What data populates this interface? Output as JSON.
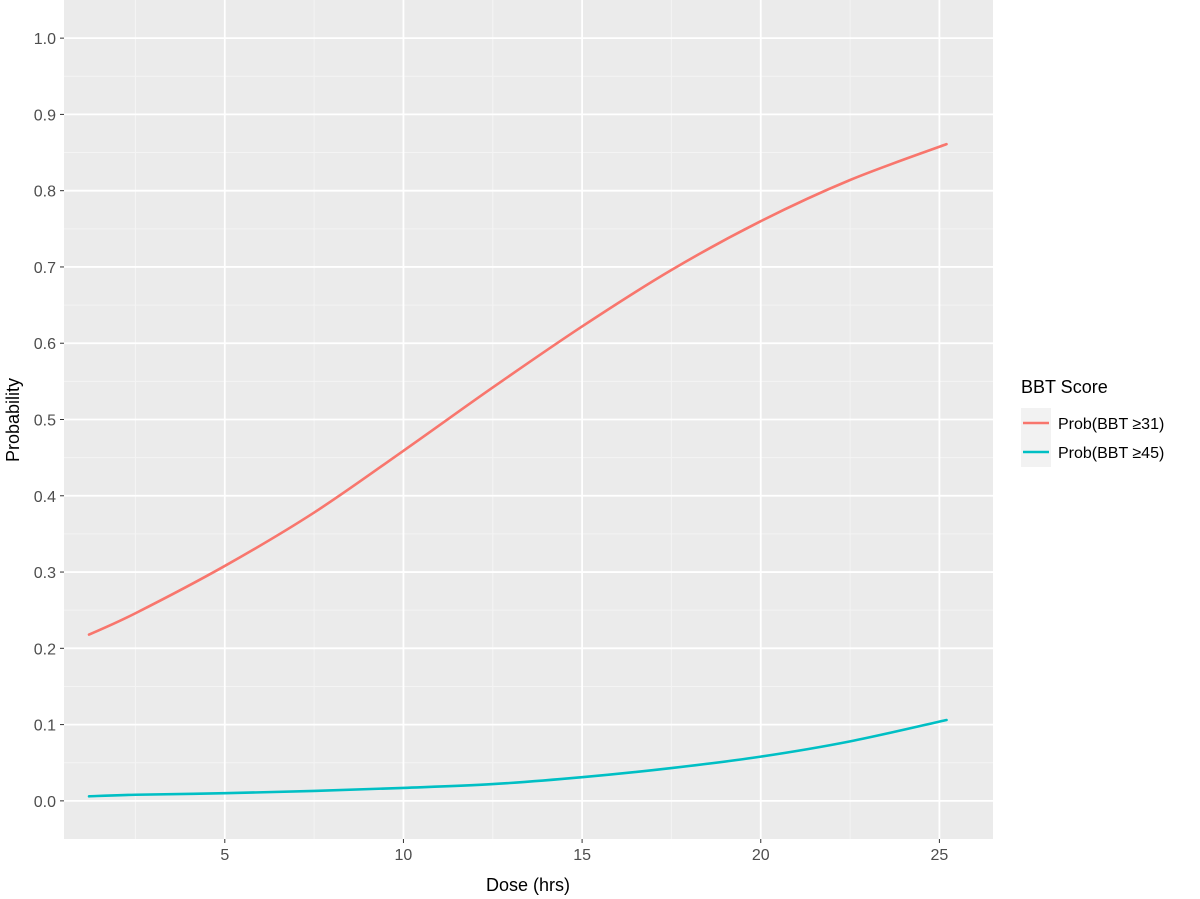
{
  "chart_data": {
    "type": "line",
    "title": "",
    "xlabel": "Dose (hrs)",
    "ylabel": "Probability",
    "xlim": [
      0.5,
      26.5
    ],
    "ylim": [
      -0.05,
      1.05
    ],
    "x_ticks": [
      5,
      10,
      15,
      20,
      25
    ],
    "x_tick_labels": [
      "5",
      "10",
      "15",
      "20",
      "25"
    ],
    "y_ticks": [
      0.0,
      0.1,
      0.2,
      0.3,
      0.4,
      0.5,
      0.6,
      0.7,
      0.8,
      0.9,
      1.0
    ],
    "y_tick_labels": [
      "0.0",
      "0.1",
      "0.2",
      "0.3",
      "0.4",
      "0.5",
      "0.6",
      "0.7",
      "0.8",
      "0.9",
      "1.0"
    ],
    "grid": true,
    "legend": {
      "title": "BBT Score",
      "placement": "right"
    },
    "x": [
      1.2,
      2.5,
      5,
      7.5,
      10,
      12.5,
      15,
      17.5,
      20,
      22.5,
      25.2
    ],
    "series": [
      {
        "name": "Prob(BBT ≥31)",
        "color": "#F8766D",
        "values": [
          0.218,
          0.246,
          0.308,
          0.378,
          0.459,
          0.542,
          0.622,
          0.696,
          0.76,
          0.814,
          0.861
        ]
      },
      {
        "name": "Prob(BBT ≥45)",
        "color": "#00BFC4",
        "values": [
          0.006,
          0.008,
          0.01,
          0.013,
          0.017,
          0.022,
          0.031,
          0.043,
          0.058,
          0.078,
          0.106
        ]
      }
    ]
  }
}
